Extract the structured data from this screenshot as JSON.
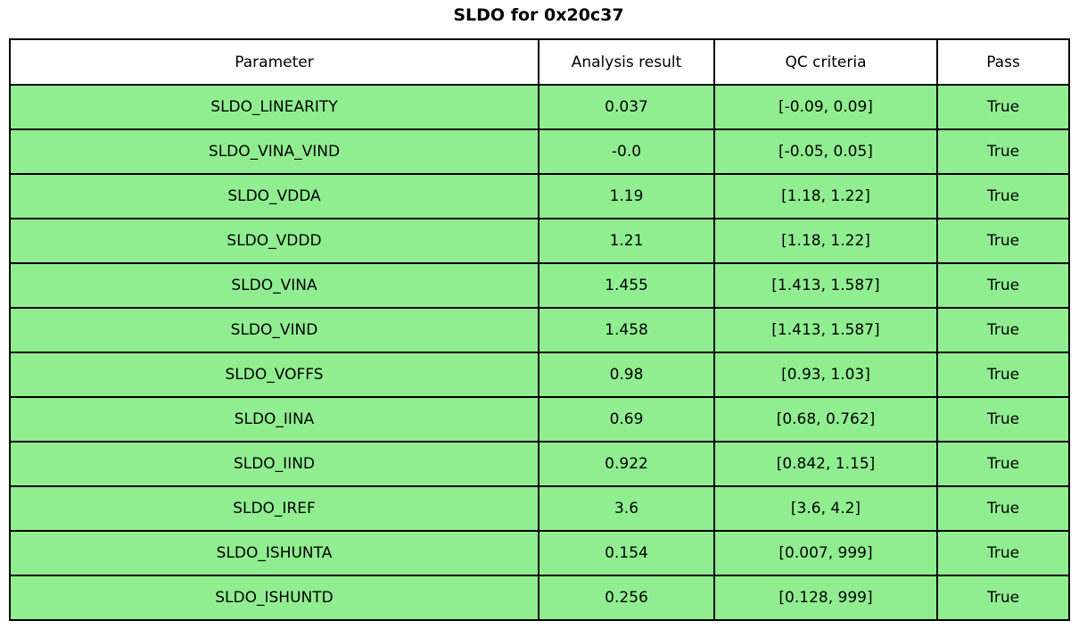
{
  "title": "SLDO for 0x20c37",
  "colors": {
    "row_bg": "#90EE90",
    "header_bg": "#FFFFFF",
    "border": "#000000"
  },
  "table": {
    "columns": [
      "Parameter",
      "Analysis result",
      "QC criteria",
      "Pass"
    ],
    "rows": [
      {
        "parameter": "SLDO_LINEARITY",
        "result": "0.037",
        "criteria": "[-0.09, 0.09]",
        "pass": "True"
      },
      {
        "parameter": "SLDO_VINA_VIND",
        "result": "-0.0",
        "criteria": "[-0.05, 0.05]",
        "pass": "True"
      },
      {
        "parameter": "SLDO_VDDA",
        "result": "1.19",
        "criteria": "[1.18, 1.22]",
        "pass": "True"
      },
      {
        "parameter": "SLDO_VDDD",
        "result": "1.21",
        "criteria": "[1.18, 1.22]",
        "pass": "True"
      },
      {
        "parameter": "SLDO_VINA",
        "result": "1.455",
        "criteria": "[1.413, 1.587]",
        "pass": "True"
      },
      {
        "parameter": "SLDO_VIND",
        "result": "1.458",
        "criteria": "[1.413, 1.587]",
        "pass": "True"
      },
      {
        "parameter": "SLDO_VOFFS",
        "result": "0.98",
        "criteria": "[0.93, 1.03]",
        "pass": "True"
      },
      {
        "parameter": "SLDO_IINA",
        "result": "0.69",
        "criteria": "[0.68, 0.762]",
        "pass": "True"
      },
      {
        "parameter": "SLDO_IIND",
        "result": "0.922",
        "criteria": "[0.842, 1.15]",
        "pass": "True"
      },
      {
        "parameter": "SLDO_IREF",
        "result": "3.6",
        "criteria": "[3.6, 4.2]",
        "pass": "True"
      },
      {
        "parameter": "SLDO_ISHUNTA",
        "result": "0.154",
        "criteria": "[0.007, 999]",
        "pass": "True"
      },
      {
        "parameter": "SLDO_ISHUNTD",
        "result": "0.256",
        "criteria": "[0.128, 999]",
        "pass": "True"
      }
    ]
  },
  "chart_data": {
    "type": "table",
    "title": "SLDO for 0x20c37",
    "columns": [
      "Parameter",
      "Analysis result",
      "QC criteria",
      "Pass"
    ],
    "rows": [
      [
        "SLDO_LINEARITY",
        0.037,
        "[-0.09, 0.09]",
        "True"
      ],
      [
        "SLDO_VINA_VIND",
        -0.0,
        "[-0.05, 0.05]",
        "True"
      ],
      [
        "SLDO_VDDA",
        1.19,
        "[1.18, 1.22]",
        "True"
      ],
      [
        "SLDO_VDDD",
        1.21,
        "[1.18, 1.22]",
        "True"
      ],
      [
        "SLDO_VINA",
        1.455,
        "[1.413, 1.587]",
        "True"
      ],
      [
        "SLDO_VIND",
        1.458,
        "[1.413, 1.587]",
        "True"
      ],
      [
        "SLDO_VOFFS",
        0.98,
        "[0.93, 1.03]",
        "True"
      ],
      [
        "SLDO_IINA",
        0.69,
        "[0.68, 0.762]",
        "True"
      ],
      [
        "SLDO_IIND",
        0.922,
        "[0.842, 1.15]",
        "True"
      ],
      [
        "SLDO_IREF",
        3.6,
        "[3.6, 4.2]",
        "True"
      ],
      [
        "SLDO_ISHUNTA",
        0.154,
        "[0.007, 999]",
        "True"
      ],
      [
        "SLDO_ISHUNTD",
        0.256,
        "[0.128, 999]",
        "True"
      ]
    ]
  }
}
